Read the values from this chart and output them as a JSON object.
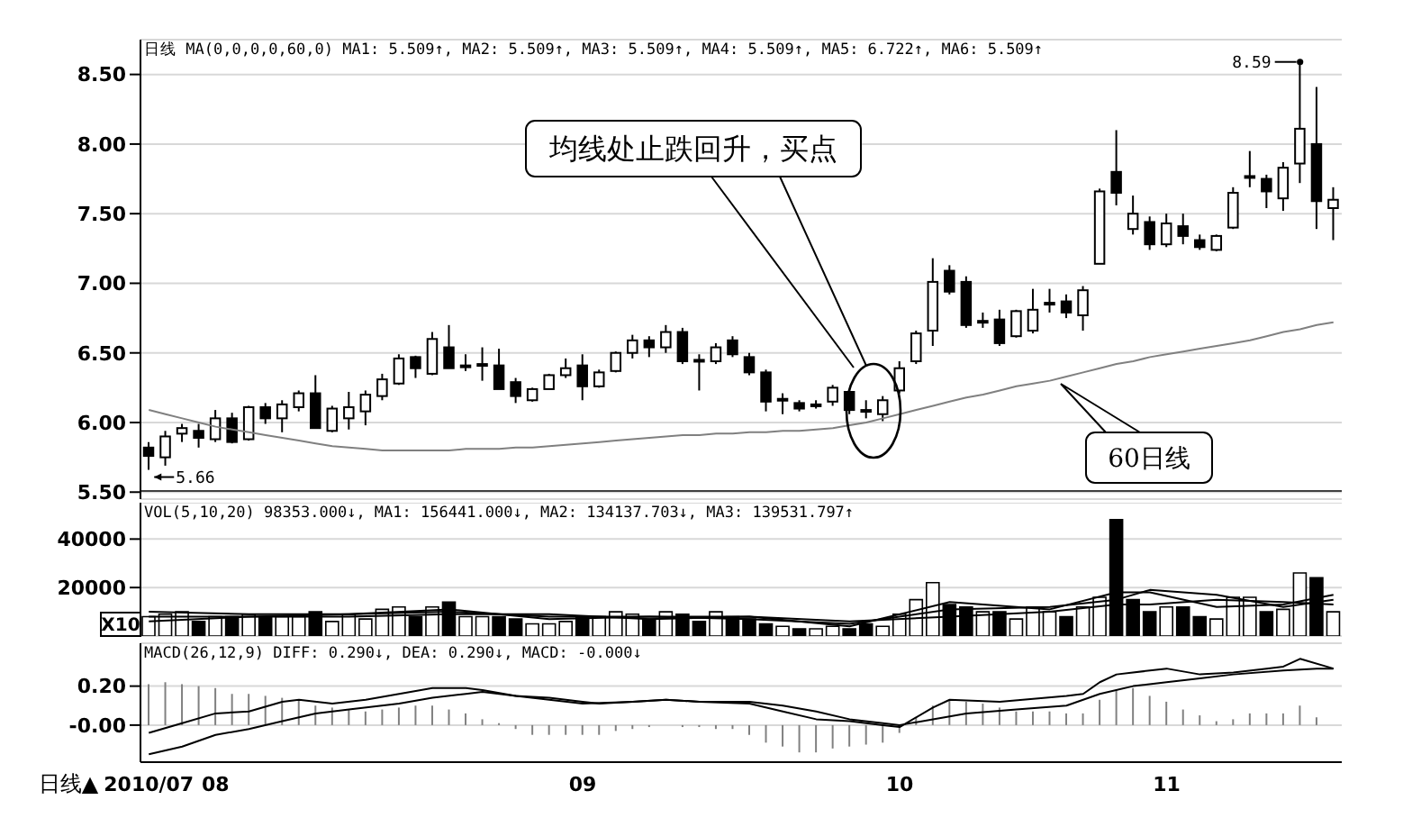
{
  "chart_data": [
    {
      "type": "candlestick",
      "title": "日线 MA(0,0,0,0,60,0) MA1: 5.509↑, MA2: 5.509↑, MA3: 5.509↑, MA4: 5.509↑, MA5: 6.722↑, MA6: 5.509↑",
      "color": "#000000",
      "categories": [
        "2010/07",
        null,
        null,
        null,
        "08",
        null,
        null,
        null,
        null,
        null,
        null,
        null,
        null,
        null,
        null,
        null,
        null,
        null,
        null,
        null,
        null,
        null,
        null,
        null,
        null,
        null,
        "09",
        null,
        null,
        null,
        null,
        null,
        null,
        null,
        null,
        null,
        null,
        null,
        null,
        null,
        null,
        null,
        null,
        null,
        null,
        "10",
        null,
        null,
        null,
        null,
        null,
        null,
        null,
        null,
        null,
        null,
        null,
        null,
        null,
        null,
        null,
        "11",
        null,
        null,
        null,
        null,
        null,
        null,
        null,
        null,
        null,
        null
      ],
      "ohlc": [
        [
          5.82,
          5.86,
          5.66,
          5.76
        ],
        [
          5.75,
          5.94,
          5.69,
          5.9
        ],
        [
          5.92,
          5.99,
          5.86,
          5.96
        ],
        [
          5.94,
          5.99,
          5.82,
          5.89
        ],
        [
          5.88,
          6.09,
          5.86,
          6.03
        ],
        [
          6.03,
          6.07,
          5.85,
          5.86
        ],
        [
          5.88,
          6.12,
          5.87,
          6.11
        ],
        [
          6.11,
          6.14,
          5.99,
          6.03
        ],
        [
          6.03,
          6.16,
          5.93,
          6.13
        ],
        [
          6.11,
          6.23,
          6.08,
          6.21
        ],
        [
          6.21,
          6.34,
          5.96,
          5.96
        ],
        [
          5.94,
          6.12,
          5.93,
          6.1
        ],
        [
          6.03,
          6.22,
          5.95,
          6.11
        ],
        [
          6.08,
          6.23,
          5.98,
          6.2
        ],
        [
          6.19,
          6.35,
          6.16,
          6.31
        ],
        [
          6.28,
          6.49,
          6.27,
          6.46
        ],
        [
          6.47,
          6.48,
          6.32,
          6.39
        ],
        [
          6.35,
          6.65,
          6.34,
          6.6
        ],
        [
          6.54,
          6.7,
          6.39,
          6.39
        ],
        [
          6.4,
          6.49,
          6.37,
          6.41
        ],
        [
          6.42,
          6.54,
          6.3,
          6.41
        ],
        [
          6.41,
          6.53,
          6.24,
          6.24
        ],
        [
          6.29,
          6.32,
          6.14,
          6.19
        ],
        [
          6.16,
          6.25,
          6.15,
          6.24
        ],
        [
          6.24,
          6.35,
          6.24,
          6.34
        ],
        [
          6.34,
          6.46,
          6.32,
          6.39
        ],
        [
          6.41,
          6.49,
          6.16,
          6.26
        ],
        [
          6.26,
          6.38,
          6.25,
          6.36
        ],
        [
          6.37,
          6.51,
          6.36,
          6.5
        ],
        [
          6.5,
          6.63,
          6.46,
          6.59
        ],
        [
          6.59,
          6.62,
          6.47,
          6.54
        ],
        [
          6.54,
          6.7,
          6.5,
          6.65
        ],
        [
          6.65,
          6.68,
          6.42,
          6.44
        ],
        [
          6.45,
          6.49,
          6.23,
          6.44
        ],
        [
          6.44,
          6.57,
          6.42,
          6.54
        ],
        [
          6.59,
          6.62,
          6.47,
          6.49
        ],
        [
          6.47,
          6.5,
          6.34,
          6.36
        ],
        [
          6.36,
          6.38,
          6.08,
          6.15
        ],
        [
          6.17,
          6.21,
          6.06,
          6.16
        ],
        [
          6.14,
          6.16,
          6.08,
          6.1
        ],
        [
          6.13,
          6.16,
          6.1,
          6.13
        ],
        [
          6.15,
          6.27,
          6.12,
          6.25
        ],
        [
          6.22,
          6.24,
          6.06,
          6.09
        ],
        [
          6.09,
          6.16,
          6.03,
          6.08
        ],
        [
          6.06,
          6.19,
          6.01,
          6.16
        ],
        [
          6.23,
          6.44,
          6.21,
          6.39
        ],
        [
          6.44,
          6.66,
          6.42,
          6.64
        ],
        [
          6.66,
          7.18,
          6.55,
          7.01
        ],
        [
          7.09,
          7.13,
          6.92,
          6.94
        ],
        [
          7.01,
          7.05,
          6.68,
          6.7
        ],
        [
          6.73,
          6.79,
          6.68,
          6.72
        ],
        [
          6.74,
          6.81,
          6.55,
          6.57
        ],
        [
          6.62,
          6.81,
          6.61,
          6.8
        ],
        [
          6.66,
          6.96,
          6.64,
          6.81
        ],
        [
          6.86,
          6.96,
          6.79,
          6.85
        ],
        [
          6.87,
          6.92,
          6.75,
          6.79
        ],
        [
          6.77,
          6.98,
          6.66,
          6.95
        ],
        [
          7.14,
          7.68,
          7.14,
          7.66
        ],
        [
          7.8,
          8.1,
          7.56,
          7.65
        ],
        [
          7.39,
          7.63,
          7.35,
          7.5
        ],
        [
          7.44,
          7.48,
          7.24,
          7.28
        ],
        [
          7.28,
          7.5,
          7.26,
          7.43
        ],
        [
          7.41,
          7.5,
          7.28,
          7.34
        ],
        [
          7.31,
          7.35,
          7.24,
          7.26
        ],
        [
          7.24,
          7.35,
          7.23,
          7.34
        ],
        [
          7.4,
          7.69,
          7.39,
          7.65
        ],
        [
          7.77,
          7.95,
          7.69,
          7.76
        ],
        [
          7.75,
          7.78,
          7.54,
          7.66
        ],
        [
          7.61,
          7.87,
          7.52,
          7.83
        ],
        [
          7.86,
          8.59,
          7.72,
          8.11
        ],
        [
          8.0,
          8.41,
          7.39,
          7.59
        ],
        [
          7.54,
          7.69,
          7.31,
          7.6
        ]
      ],
      "series": [
        {
          "type": "line",
          "color": "#808080",
          "values": [
            6.09,
            6.06,
            6.03,
            6.0,
            5.97,
            5.95,
            5.93,
            5.91,
            5.89,
            5.87,
            5.85,
            5.83,
            5.82,
            5.81,
            5.8,
            5.8,
            5.8,
            5.8,
            5.8,
            5.81,
            5.81,
            5.81,
            5.82,
            5.82,
            5.83,
            5.84,
            5.85,
            5.86,
            5.87,
            5.88,
            5.89,
            5.9,
            5.91,
            5.91,
            5.92,
            5.92,
            5.93,
            5.93,
            5.94,
            5.94,
            5.95,
            5.96,
            5.98,
            6.0,
            6.03,
            6.06,
            6.09,
            6.12,
            6.15,
            6.18,
            6.2,
            6.23,
            6.26,
            6.28,
            6.3,
            6.33,
            6.36,
            6.39,
            6.42,
            6.44,
            6.47,
            6.49,
            6.51,
            6.53,
            6.55,
            6.57,
            6.59,
            6.62,
            6.65,
            6.67,
            6.7,
            6.72
          ]
        }
      ],
      "ylim": [
        5.45,
        8.75
      ],
      "yticks": [
        {
          "value": 5.5,
          "label": "5.50"
        },
        {
          "value": 6,
          "label": "6.00"
        },
        {
          "value": 6.5,
          "label": "6.50"
        },
        {
          "value": 7,
          "label": "7.00"
        },
        {
          "value": 7.5,
          "label": "7.50"
        },
        {
          "value": 8,
          "label": "8.00"
        },
        {
          "value": 8.5,
          "label": "8.50"
        }
      ],
      "grid": "y",
      "tick_labels": "y",
      "ref_lines": [
        {
          "axis": "y",
          "value": 5.509,
          "color": "#404040"
        }
      ],
      "annotations": [
        "均线处止跌回升，买点",
        "60日线",
        "8.59",
        "5.66"
      ]
    },
    {
      "type": "bar",
      "title": "VOL(5,10,20) 98353.000↓, MA1: 156441.000↓, MA2: 134137.703↓, MA3: 139531.797↑",
      "categories": [
        "2010/07",
        null,
        null,
        null,
        "08",
        null,
        null,
        null,
        null,
        null,
        null,
        null,
        null,
        null,
        null,
        null,
        null,
        null,
        null,
        null,
        null,
        null,
        null,
        null,
        null,
        null,
        "09",
        null,
        null,
        null,
        null,
        null,
        null,
        null,
        null,
        null,
        null,
        null,
        null,
        null,
        null,
        null,
        null,
        null,
        null,
        "10",
        null,
        null,
        null,
        null,
        null,
        null,
        null,
        null,
        null,
        null,
        null,
        null,
        null,
        null,
        null,
        "11",
        null,
        null,
        null,
        null,
        null,
        null,
        null,
        null,
        null,
        null
      ],
      "series": [
        {
          "type": "bar",
          "values": [
            8000,
            9000,
            10000,
            6000,
            8000,
            8000,
            9000,
            8000,
            8000,
            8000,
            10000,
            6000,
            9000,
            7000,
            11000,
            12000,
            8000,
            12000,
            14000,
            8000,
            8000,
            8000,
            7000,
            5000,
            5000,
            6000,
            8000,
            8000,
            10000,
            9000,
            7000,
            10000,
            9000,
            6000,
            10000,
            8000,
            7000,
            5000,
            4000,
            3000,
            3000,
            4000,
            3000,
            5000,
            4000,
            9000,
            15000,
            22000,
            13000,
            12000,
            10000,
            10000,
            7000,
            12000,
            10000,
            8000,
            12000,
            16000,
            48000,
            15000,
            10000,
            12000,
            12000,
            8000,
            7000,
            16000,
            16000,
            10000,
            11000,
            26000,
            24000,
            10000
          ],
          "colors": [
            "#ffffff",
            "#ffffff",
            "#ffffff",
            "#000000",
            "#ffffff",
            "#000000",
            "#ffffff",
            "#000000",
            "#ffffff",
            "#ffffff",
            "#000000",
            "#ffffff",
            "#ffffff",
            "#ffffff",
            "#ffffff",
            "#ffffff",
            "#000000",
            "#ffffff",
            "#000000",
            "#ffffff",
            "#ffffff",
            "#000000",
            "#000000",
            "#ffffff",
            "#ffffff",
            "#ffffff",
            "#000000",
            "#ffffff",
            "#ffffff",
            "#ffffff",
            "#000000",
            "#ffffff",
            "#000000",
            "#000000",
            "#ffffff",
            "#000000",
            "#000000",
            "#000000",
            "#ffffff",
            "#000000",
            "#ffffff",
            "#ffffff",
            "#000000",
            "#000000",
            "#ffffff",
            "#ffffff",
            "#ffffff",
            "#ffffff",
            "#000000",
            "#000000",
            "#ffffff",
            "#000000",
            "#ffffff",
            "#ffffff",
            "#ffffff",
            "#000000",
            "#ffffff",
            "#ffffff",
            "#000000",
            "#000000",
            "#000000",
            "#ffffff",
            "#000000",
            "#000000",
            "#ffffff",
            "#ffffff",
            "#ffffff",
            "#000000",
            "#ffffff",
            "#ffffff",
            "#000000",
            "#ffffff"
          ]
        },
        {
          "type": "line",
          "color": "#000000",
          "values": [
            10000,
            null,
            null,
            null,
            null,
            null,
            9000,
            null,
            null,
            null,
            null,
            null,
            9000,
            null,
            null,
            null,
            null,
            null,
            11000,
            null,
            null,
            null,
            null,
            null,
            7000,
            null,
            null,
            null,
            null,
            null,
            8000,
            null,
            null,
            null,
            null,
            null,
            8000,
            null,
            null,
            null,
            null,
            null,
            4000,
            null,
            null,
            null,
            null,
            null,
            14000,
            null,
            null,
            null,
            null,
            null,
            11000,
            null,
            null,
            null,
            18000,
            null,
            18000,
            null,
            null,
            null,
            12000,
            null,
            null,
            null,
            13000,
            null,
            null,
            17000
          ]
        },
        {
          "type": "line",
          "color": "#000000",
          "values": [
            8000,
            null,
            null,
            null,
            null,
            null,
            8000,
            null,
            null,
            null,
            null,
            null,
            9000,
            null,
            null,
            null,
            null,
            null,
            10000,
            null,
            null,
            null,
            null,
            null,
            8000,
            null,
            null,
            null,
            null,
            null,
            8000,
            null,
            null,
            null,
            null,
            null,
            7000,
            null,
            null,
            null,
            null,
            null,
            5000,
            null,
            null,
            null,
            null,
            null,
            11000,
            null,
            null,
            null,
            null,
            null,
            12000,
            null,
            null,
            null,
            15000,
            null,
            19000,
            null,
            null,
            null,
            17000,
            null,
            null,
            null,
            12000,
            null,
            null,
            15000
          ]
        },
        {
          "type": "line",
          "color": "#000000",
          "values": [
            6000,
            null,
            null,
            null,
            null,
            null,
            8000,
            null,
            null,
            null,
            null,
            null,
            8000,
            null,
            null,
            null,
            null,
            null,
            9000,
            null,
            null,
            null,
            null,
            null,
            9000,
            null,
            null,
            null,
            null,
            null,
            7000,
            null,
            null,
            null,
            null,
            null,
            8000,
            null,
            null,
            null,
            null,
            null,
            6000,
            null,
            null,
            null,
            null,
            null,
            8000,
            null,
            null,
            null,
            null,
            null,
            10000,
            null,
            null,
            null,
            13000,
            null,
            13000,
            null,
            null,
            null,
            15000,
            null,
            null,
            null,
            14000,
            null,
            null,
            13000
          ]
        }
      ],
      "ylim": [
        0,
        55000
      ],
      "yticks": [
        20000,
        40000
      ],
      "grid": "y",
      "tick_labels": "y",
      "annotations": [
        "X10"
      ]
    },
    {
      "type": "line",
      "title": "MACD(26,12,9) DIFF: 0.290↓, DEA: 0.290↓, MACD: -0.000↓",
      "categories": [
        "2010/07",
        null,
        null,
        null,
        "08",
        null,
        null,
        null,
        null,
        null,
        null,
        null,
        null,
        null,
        null,
        null,
        null,
        null,
        null,
        null,
        null,
        null,
        null,
        null,
        null,
        null,
        "09",
        null,
        null,
        null,
        null,
        null,
        null,
        null,
        null,
        null,
        null,
        null,
        null,
        null,
        null,
        null,
        null,
        null,
        null,
        "10",
        null,
        null,
        null,
        null,
        null,
        null,
        null,
        null,
        null,
        null,
        null,
        null,
        null,
        null,
        null,
        "11",
        null,
        null,
        null,
        null,
        null,
        null,
        null,
        null,
        null,
        null
      ],
      "series": [
        {
          "type": "bar",
          "color": "#808080",
          "values": [
            0.21,
            0.22,
            0.21,
            0.2,
            0.19,
            0.16,
            0.16,
            0.15,
            0.14,
            0.13,
            0.1,
            0.09,
            0.08,
            0.07,
            0.08,
            0.09,
            0.1,
            0.1,
            0.08,
            0.06,
            0.03,
            0.01,
            -0.02,
            -0.05,
            -0.05,
            -0.05,
            -0.05,
            -0.05,
            -0.03,
            -0.02,
            -0.01,
            0.0,
            -0.01,
            -0.01,
            -0.02,
            -0.02,
            -0.05,
            -0.09,
            -0.11,
            -0.14,
            -0.14,
            -0.12,
            -0.11,
            -0.1,
            -0.09,
            -0.04,
            0.04,
            0.1,
            0.13,
            0.12,
            0.11,
            0.09,
            0.07,
            0.07,
            0.07,
            0.06,
            0.06,
            0.13,
            0.18,
            0.19,
            0.15,
            0.12,
            0.08,
            0.05,
            0.02,
            0.03,
            0.06,
            0.06,
            0.06,
            0.1,
            0.04,
            0.0
          ]
        },
        {
          "type": "line",
          "color": "#000000",
          "values": [
            -0.04,
            null,
            0.01,
            null,
            0.06,
            null,
            0.07,
            null,
            0.12,
            0.13,
            null,
            0.11,
            null,
            0.13,
            null,
            0.16,
            null,
            0.19,
            null,
            0.19,
            0.18,
            null,
            0.15,
            null,
            0.14,
            null,
            0.12,
            0.11,
            null,
            0.12,
            null,
            0.13,
            null,
            0.12,
            null,
            null,
            0.11,
            null,
            0.07,
            null,
            0.03,
            null,
            0.02,
            null,
            0.0,
            -0.01,
            null,
            0.09,
            0.13,
            null,
            null,
            0.12,
            null,
            null,
            null,
            0.15,
            0.16,
            0.22,
            0.26,
            null,
            null,
            0.29,
            null,
            0.26,
            null,
            0.27,
            null,
            0.29,
            0.3,
            0.34,
            null,
            0.29
          ]
        },
        {
          "type": "line",
          "color": "#000000",
          "values": [
            -0.15,
            null,
            -0.11,
            null,
            -0.05,
            null,
            -0.02,
            null,
            0.02,
            null,
            0.06,
            null,
            0.08,
            null,
            null,
            0.11,
            null,
            0.14,
            null,
            0.16,
            0.17,
            null,
            0.15,
            null,
            0.13,
            null,
            0.11,
            null,
            null,
            0.12,
            null,
            0.13,
            null,
            0.12,
            null,
            null,
            0.12,
            null,
            0.1,
            null,
            0.07,
            null,
            0.03,
            null,
            0.01,
            0.0,
            null,
            0.03,
            null,
            0.06,
            null,
            null,
            0.08,
            null,
            null,
            0.1,
            null,
            0.16,
            null,
            0.2,
            null,
            0.22,
            null,
            0.24,
            null,
            0.26,
            null,
            null,
            0.28,
            null,
            0.29,
            0.29
          ]
        }
      ],
      "ylim": [
        -0.19,
        0.42
      ],
      "yticks": [
        {
          "value": 0,
          "label": "-0.00"
        },
        {
          "value": 0.2,
          "label": "0.20"
        }
      ],
      "grid": "y",
      "annotations": [
        "日线▲"
      ]
    }
  ]
}
